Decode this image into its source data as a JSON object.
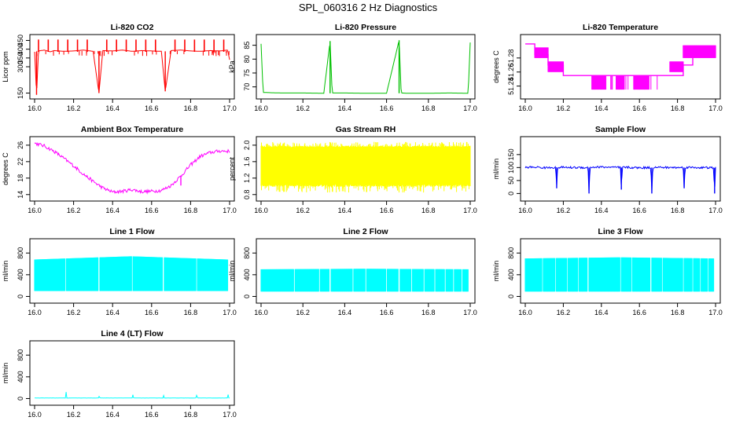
{
  "page": {
    "title": "SPL_060316  2 Hz Diagnostics"
  },
  "chart_data": [
    {
      "type": "line",
      "title": "Li-820 CO2",
      "ylabel": "Licor ppm",
      "color": "#ff0000",
      "xlim": [
        16.0,
        17.0
      ],
      "ylim": [
        130,
        470
      ],
      "x_ticks": [
        "16.0",
        "16.2",
        "16.4",
        "16.6",
        "16.8",
        "17.0"
      ],
      "y_ticks": [
        {
          "v": 150,
          "label": "150"
        },
        {
          "v": 300,
          "label": "300"
        },
        {
          "v": 350,
          "label": "350"
        },
        {
          "v": 400,
          "label": "400"
        },
        {
          "v": 450,
          "label": "450"
        }
      ],
      "series": [
        {
          "x": [
            16.0,
            16.01,
            16.02,
            16.05,
            16.08,
            16.1,
            16.15,
            16.2,
            16.25,
            16.3,
            16.33,
            16.35,
            16.4,
            16.45,
            16.5,
            16.55,
            16.6,
            16.65,
            16.67,
            16.7,
            16.75,
            16.8,
            16.85,
            16.9,
            16.95,
            16.99,
            17.0
          ],
          "y": [
            385,
            140,
            390,
            395,
            385,
            392,
            388,
            390,
            395,
            388,
            150,
            392,
            390,
            395,
            388,
            392,
            390,
            388,
            160,
            392,
            395,
            390,
            388,
            392,
            390,
            395,
            340
          ]
        }
      ],
      "spikes": [
        {
          "x": [
            16.02,
            16.07,
            16.12,
            16.17,
            16.22,
            16.27,
            16.37,
            16.42,
            16.47,
            16.52,
            16.57,
            16.62,
            16.72,
            16.77,
            16.82,
            16.87,
            16.92,
            16.97
          ],
          "y": 455
        }
      ]
    },
    {
      "type": "line",
      "title": "Li-820 Pressure",
      "ylabel": "kPa",
      "color": "#00c000",
      "xlim": [
        16.0,
        17.0
      ],
      "ylim": [
        66.5,
        88
      ],
      "x_ticks": [
        "16.0",
        "16.2",
        "16.4",
        "16.6",
        "16.8",
        "17.0"
      ],
      "y_ticks": [
        {
          "v": 70,
          "label": "70"
        },
        {
          "v": 75,
          "label": "75"
        },
        {
          "v": 80,
          "label": "80"
        },
        {
          "v": 85,
          "label": "85"
        }
      ],
      "series": [
        {
          "x": [
            16.0,
            16.01,
            16.05,
            16.1,
            16.2,
            16.3,
            16.33,
            16.34,
            16.4,
            16.5,
            16.6,
            16.66,
            16.67,
            16.7,
            16.8,
            16.9,
            16.99,
            17.0
          ],
          "y": [
            85.5,
            68.0,
            67.9,
            67.8,
            67.8,
            67.7,
            86.5,
            67.8,
            67.8,
            67.7,
            67.7,
            86.8,
            67.8,
            67.7,
            67.7,
            67.8,
            67.7,
            86.0
          ]
        }
      ],
      "spikes": []
    },
    {
      "type": "step",
      "title": "Li-820 Temperature",
      "ylabel": "degrees C",
      "color": "#ff00ff",
      "xlim": [
        16.0,
        17.0
      ],
      "ylim": [
        51.225,
        51.31
      ],
      "x_ticks": [
        "16.0",
        "16.2",
        "16.4",
        "16.6",
        "16.8",
        "17.0"
      ],
      "y_ticks": [
        {
          "v": 51.24,
          "label": "51.24"
        },
        {
          "v": 51.26,
          "label": "51.26"
        },
        {
          "v": 51.28,
          "label": "51.28"
        }
      ],
      "series": [
        {
          "x": [
            16.0,
            16.05,
            16.05,
            16.12,
            16.12,
            16.2,
            16.2,
            16.35,
            16.35,
            16.7,
            16.7,
            16.83,
            16.83,
            16.88,
            16.88,
            17.0
          ],
          "y": [
            51.3,
            51.3,
            51.285,
            51.285,
            51.27,
            51.27,
            51.255,
            51.255,
            51.255,
            51.255,
            51.255,
            51.255,
            51.27,
            51.27,
            51.29,
            51.29
          ]
        }
      ],
      "bands": [
        {
          "x0": 16.05,
          "x1": 16.12,
          "y0": 51.28,
          "y1": 51.295
        },
        {
          "x0": 16.12,
          "x1": 16.2,
          "y0": 51.26,
          "y1": 51.275
        },
        {
          "x0": 16.35,
          "x1": 16.42,
          "y0": 51.235,
          "y1": 51.255
        },
        {
          "x0": 16.48,
          "x1": 16.52,
          "y0": 51.235,
          "y1": 51.255
        },
        {
          "x0": 16.57,
          "x1": 16.65,
          "y0": 51.235,
          "y1": 51.255
        },
        {
          "x0": 16.76,
          "x1": 16.83,
          "y0": 51.26,
          "y1": 51.275
        },
        {
          "x0": 16.83,
          "x1": 17.0,
          "y0": 51.28,
          "y1": 51.298
        }
      ]
    },
    {
      "type": "line",
      "title": "Ambient Box Temperature",
      "ylabel": "degrees C",
      "color": "#ff00ff",
      "xlim": [
        16.0,
        17.0
      ],
      "ylim": [
        13,
        27.5
      ],
      "x_ticks": [
        "16.0",
        "16.2",
        "16.4",
        "16.6",
        "16.8",
        "17.0"
      ],
      "y_ticks": [
        {
          "v": 14,
          "label": "14"
        },
        {
          "v": 18,
          "label": "18"
        },
        {
          "v": 22,
          "label": "22"
        },
        {
          "v": 26,
          "label": "26"
        }
      ],
      "series": [
        {
          "x": [
            16.0,
            16.05,
            16.1,
            16.15,
            16.2,
            16.25,
            16.3,
            16.35,
            16.4,
            16.45,
            16.5,
            16.55,
            16.6,
            16.65,
            16.7,
            16.75,
            16.8,
            16.85,
            16.9,
            16.95,
            17.0
          ],
          "y": [
            26.5,
            25.8,
            24.5,
            22.8,
            21.0,
            19.0,
            17.2,
            15.6,
            14.6,
            14.8,
            15.2,
            14.7,
            14.8,
            15.0,
            16.2,
            18.5,
            21.2,
            23.3,
            24.2,
            24.6,
            24.5
          ]
        }
      ],
      "noise": 0.8
    },
    {
      "type": "band",
      "title": "Gas Stream RH",
      "ylabel": "percent",
      "color": "#ffff00",
      "xlim": [
        16.0,
        17.0
      ],
      "ylim": [
        0.7,
        2.15
      ],
      "x_ticks": [
        "16.0",
        "16.2",
        "16.4",
        "16.6",
        "16.8",
        "17.0"
      ],
      "y_ticks": [
        {
          "v": 0.8,
          "label": "0.8"
        },
        {
          "v": 1.2,
          "label": "1.2"
        },
        {
          "v": 1.6,
          "label": "1.6"
        },
        {
          "v": 2.0,
          "label": "2.0"
        }
      ],
      "band": {
        "lo": 1.05,
        "hi": 1.95,
        "minlo": 0.85,
        "maxhi": 2.08
      }
    },
    {
      "type": "line",
      "title": "Sample Flow",
      "ylabel": "ml/min",
      "color": "#0000ff",
      "xlim": [
        16.0,
        17.0
      ],
      "ylim": [
        -20,
        210
      ],
      "x_ticks": [
        "16.0",
        "16.2",
        "16.4",
        "16.6",
        "16.8",
        "17.0"
      ],
      "y_ticks": [
        {
          "v": 0,
          "label": "0"
        },
        {
          "v": 50,
          "label": "50"
        },
        {
          "v": 100,
          "label": "100"
        },
        {
          "v": 150,
          "label": "150"
        }
      ],
      "series": [
        {
          "x": [
            16.0,
            16.05,
            16.1,
            16.16,
            16.165,
            16.17,
            16.25,
            16.33,
            16.335,
            16.34,
            16.4,
            16.5,
            16.505,
            16.51,
            16.6,
            16.66,
            16.665,
            16.67,
            16.75,
            16.83,
            16.835,
            16.84,
            16.9,
            16.99,
            16.995,
            17.0
          ],
          "y": [
            100,
            102,
            99,
            101,
            20,
            101,
            100,
            100,
            0,
            101,
            102,
            100,
            15,
            101,
            99,
            100,
            0,
            101,
            100,
            100,
            20,
            101,
            100,
            99,
            0,
            100
          ]
        }
      ],
      "noise": 8
    },
    {
      "type": "pulse",
      "title": "Line 1 Flow",
      "ylabel": "ml/min",
      "color": "#00ffff",
      "xlim": [
        16.0,
        17.0
      ],
      "ylim": [
        -80,
        1020
      ],
      "x_ticks": [
        "16.0",
        "16.2",
        "16.4",
        "16.6",
        "16.8",
        "17.0"
      ],
      "y_ticks": [
        {
          "v": 0,
          "label": "0"
        },
        {
          "v": 400,
          "label": "400"
        },
        {
          "v": 800,
          "label": "800"
        }
      ],
      "pulse": {
        "lo": 100,
        "hi_start": 680,
        "hi_mid": 740,
        "hi_end": 680,
        "gaps": [
          16.16,
          16.33,
          16.5,
          16.66,
          16.83
        ],
        "end": 16.99
      }
    },
    {
      "type": "pulse",
      "title": "Line 2 Flow",
      "ylabel": "ml/min",
      "color": "#00ffff",
      "xlim": [
        16.0,
        17.0
      ],
      "ylim": [
        -80,
        1020
      ],
      "x_ticks": [
        "16.0",
        "16.2",
        "16.4",
        "16.6",
        "16.8",
        "17.0"
      ],
      "y_ticks": [
        {
          "v": 0,
          "label": "0"
        },
        {
          "v": 400,
          "label": "400"
        },
        {
          "v": 800,
          "label": "800"
        }
      ],
      "pulse": {
        "lo": 90,
        "hi_start": 500,
        "hi_mid": 510,
        "hi_end": 500,
        "gaps": [
          16.16,
          16.28,
          16.33,
          16.44,
          16.5,
          16.6,
          16.66,
          16.72,
          16.78,
          16.83,
          16.88,
          16.92,
          16.96
        ],
        "end": 16.99
      }
    },
    {
      "type": "pulse",
      "title": "Line 3 Flow",
      "ylabel": "ml/min",
      "color": "#00ffff",
      "xlim": [
        16.0,
        17.0
      ],
      "ylim": [
        -80,
        1020
      ],
      "x_ticks": [
        "16.0",
        "16.2",
        "16.4",
        "16.6",
        "16.8",
        "17.0"
      ],
      "y_ticks": [
        {
          "v": 0,
          "label": "0"
        },
        {
          "v": 400,
          "label": "400"
        },
        {
          "v": 800,
          "label": "800"
        }
      ],
      "pulse": {
        "lo": 90,
        "hi_start": 700,
        "hi_mid": 720,
        "hi_end": 700,
        "gaps": [
          16.09,
          16.16,
          16.22,
          16.28,
          16.33,
          16.5,
          16.56,
          16.66,
          16.72,
          16.83,
          16.88,
          16.92,
          16.96
        ],
        "end": 16.99
      }
    },
    {
      "type": "line",
      "title": "Line 4 (LT) Flow",
      "ylabel": "ml/min",
      "color": "#00ffff",
      "xlim": [
        16.0,
        17.0
      ],
      "ylim": [
        -80,
        1020
      ],
      "x_ticks": [
        "16.0",
        "16.2",
        "16.4",
        "16.6",
        "16.8",
        "17.0"
      ],
      "y_ticks": [
        {
          "v": 0,
          "label": "0"
        },
        {
          "v": 400,
          "label": "400"
        },
        {
          "v": 800,
          "label": "800"
        }
      ],
      "series": [
        {
          "x": [
            16.0,
            16.1,
            16.16,
            16.162,
            16.165,
            16.3,
            16.33,
            16.332,
            16.335,
            16.45,
            16.5,
            16.502,
            16.505,
            16.6,
            16.66,
            16.662,
            16.665,
            16.8,
            16.83,
            16.832,
            16.835,
            16.95,
            16.99,
            16.992,
            16.995,
            17.0
          ],
          "y": [
            10,
            10,
            10,
            150,
            10,
            10,
            10,
            80,
            10,
            10,
            10,
            160,
            10,
            10,
            10,
            70,
            10,
            10,
            10,
            140,
            10,
            10,
            10,
            80,
            10,
            10
          ]
        }
      ],
      "noise": 4
    }
  ]
}
